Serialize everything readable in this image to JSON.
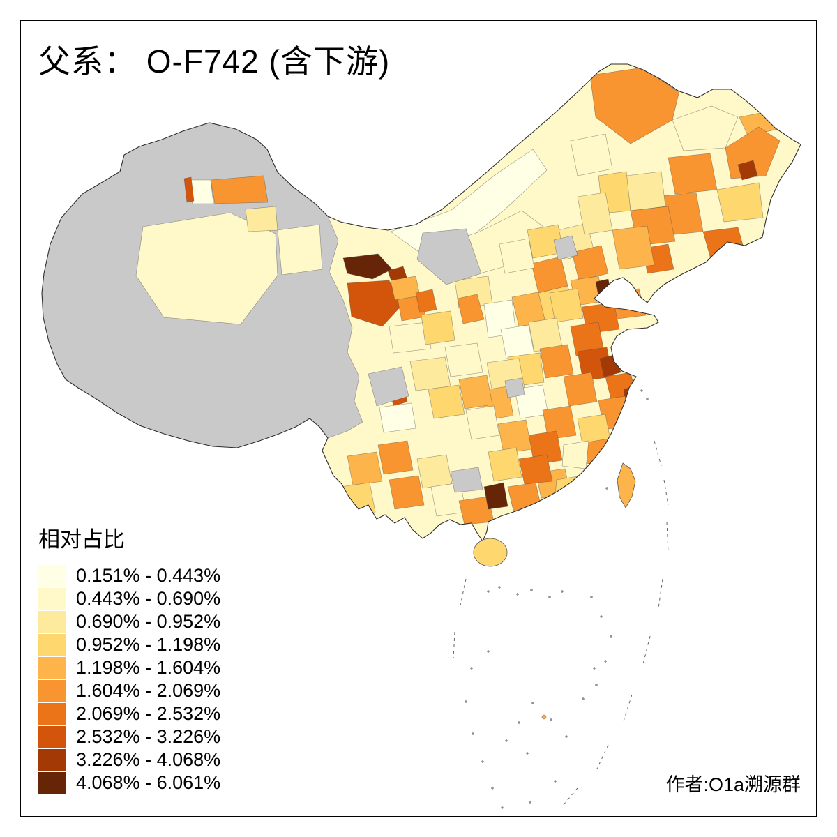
{
  "title": "父系： O-F742 (含下游)",
  "legend": {
    "title": "相对占比",
    "classes": [
      {
        "label": "0.151% - 0.443%",
        "color": "#FFFFE5"
      },
      {
        "label": "0.443% - 0.690%",
        "color": "#FFF8C8"
      },
      {
        "label": "0.690% - 0.952%",
        "color": "#FEEA9C"
      },
      {
        "label": "0.952% - 1.198%",
        "color": "#FED76E"
      },
      {
        "label": "1.198% - 1.604%",
        "color": "#FDB44A"
      },
      {
        "label": "1.604% - 2.069%",
        "color": "#F89530"
      },
      {
        "label": "2.069% - 2.532%",
        "color": "#EC7418"
      },
      {
        "label": "2.532% - 3.226%",
        "color": "#D3550C"
      },
      {
        "label": "3.226% - 4.068%",
        "color": "#A33A05"
      },
      {
        "label": "4.068% - 6.061%",
        "color": "#662506"
      }
    ]
  },
  "map": {
    "no_data_color": "#C9C9C9",
    "sea_color": "#FFFFFF",
    "border_color": "#2E2E2E"
  },
  "credit": "作者:O1a溯源群"
}
